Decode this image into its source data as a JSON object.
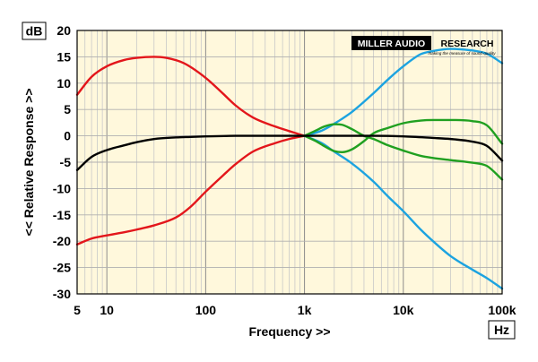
{
  "chart_data": {
    "type": "line",
    "xscale": "log",
    "xlim": [
      5,
      100000
    ],
    "ylim": [
      -30,
      20
    ],
    "grid": true,
    "xlabel": "Frequency >>",
    "ylabel": "<< Relative Response >>",
    "y_unit": "dB",
    "x_unit": "Hz",
    "xticks": [
      {
        "value": 5,
        "label": "5"
      },
      {
        "value": 10,
        "label": "10"
      },
      {
        "value": 100,
        "label": "100"
      },
      {
        "value": 1000,
        "label": "1k"
      },
      {
        "value": 10000,
        "label": "10k"
      },
      {
        "value": 100000,
        "label": "100k"
      }
    ],
    "yticks": [
      {
        "value": 20,
        "label": "20"
      },
      {
        "value": 15,
        "label": "15"
      },
      {
        "value": 10,
        "label": "10"
      },
      {
        "value": 5,
        "label": "5"
      },
      {
        "value": 0,
        "label": "0"
      },
      {
        "value": -5,
        "label": "-5"
      },
      {
        "value": -10,
        "label": "-10"
      },
      {
        "value": -15,
        "label": "-15"
      },
      {
        "value": -20,
        "label": "-20"
      },
      {
        "value": -25,
        "label": "-25"
      },
      {
        "value": -30,
        "label": "-30"
      }
    ],
    "logo": {
      "text_left": "MILLER AUDIO",
      "text_right": "RESEARCH",
      "tagline": "making the measure of sound quality"
    },
    "series": [
      {
        "color": "#e3161b",
        "x": [
          5,
          7,
          10,
          15,
          20,
          30,
          40,
          60,
          100,
          150,
          200,
          300,
          500,
          700,
          1000
        ],
        "y": [
          7.8,
          11.2,
          13.2,
          14.4,
          14.8,
          15,
          14.8,
          13.8,
          11,
          8,
          5.8,
          3.5,
          1.8,
          0.9,
          0
        ]
      },
      {
        "color": "#e3161b",
        "x": [
          5,
          7,
          10,
          15,
          20,
          30,
          50,
          70,
          100,
          150,
          200,
          300,
          500,
          700,
          1000
        ],
        "y": [
          -20.6,
          -19.5,
          -18.9,
          -18.3,
          -17.8,
          -17,
          -15.5,
          -13.5,
          -10.6,
          -7.5,
          -5.4,
          -3,
          -1.4,
          -0.6,
          0
        ]
      },
      {
        "color": "#1ca3e0",
        "x": [
          1000,
          1500,
          2000,
          3000,
          5000,
          7000,
          10000,
          15000,
          20000,
          30000,
          50000,
          70000,
          100000
        ],
        "y": [
          0,
          1,
          2.3,
          4.5,
          8.1,
          10.7,
          13.2,
          15.5,
          16.1,
          16.5,
          16.2,
          15.6,
          13.8
        ]
      },
      {
        "color": "#1ca3e0",
        "x": [
          1000,
          1500,
          2000,
          3000,
          5000,
          7000,
          10000,
          15000,
          20000,
          30000,
          50000,
          70000,
          100000
        ],
        "y": [
          0,
          -1.4,
          -3,
          -5.2,
          -8.7,
          -11.5,
          -14.3,
          -17.8,
          -20,
          -22.8,
          -25.4,
          -27,
          -29
        ]
      },
      {
        "color": "#20a020",
        "x": [
          1000,
          1300,
          1600,
          2000,
          2400,
          3000,
          4000,
          5000,
          7000,
          10000,
          15000,
          20000,
          30000,
          50000,
          70000,
          100000
        ],
        "y": [
          0,
          1,
          1.8,
          2.2,
          2.1,
          1.3,
          0,
          -0.6,
          -1.8,
          -2.8,
          -3.8,
          -4.2,
          -4.6,
          -5.1,
          -5.7,
          -8.3
        ]
      },
      {
        "color": "#20a020",
        "x": [
          1000,
          1300,
          1600,
          2000,
          2400,
          3000,
          4000,
          5000,
          7000,
          10000,
          15000,
          20000,
          30000,
          50000,
          70000,
          100000
        ],
        "y": [
          0,
          -1,
          -2,
          -2.9,
          -3.1,
          -2.6,
          -1,
          0.5,
          1.5,
          2.4,
          2.9,
          3,
          3,
          2.8,
          2,
          -1.5
        ]
      },
      {
        "color": "#000000",
        "x": [
          5,
          7,
          10,
          15,
          20,
          30,
          50,
          70,
          100,
          200,
          500,
          1000,
          2000,
          5000,
          10000,
          20000,
          30000,
          50000,
          70000,
          100000
        ],
        "y": [
          -6.5,
          -4,
          -2.7,
          -1.8,
          -1.2,
          -0.6,
          -0.3,
          -0.2,
          -0.1,
          0,
          0,
          0,
          0,
          0,
          -0.1,
          -0.4,
          -0.6,
          -1.1,
          -1.9,
          -4.7
        ]
      }
    ]
  }
}
